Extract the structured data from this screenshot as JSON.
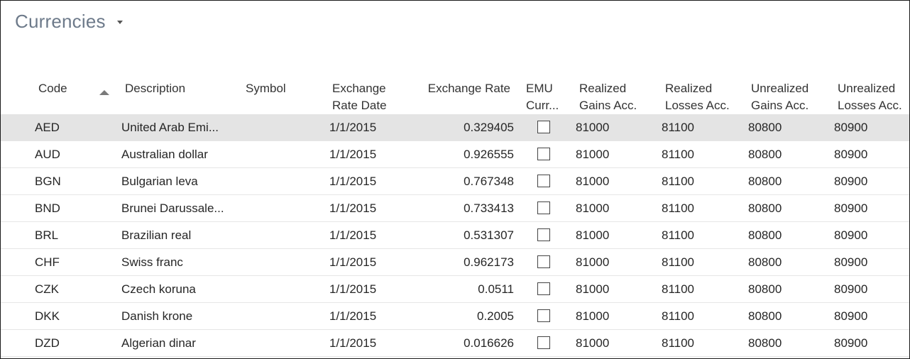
{
  "page": {
    "title": "Currencies"
  },
  "columns": {
    "code": "Code",
    "description": "Description",
    "symbol": "Symbol",
    "exchange_rate_date_1": "Exchange",
    "exchange_rate_date_2": "Rate Date",
    "exchange_rate": "Exchange Rate",
    "emu_1": "EMU",
    "emu_2": "Curr...",
    "realized_gains_1": "Realized",
    "realized_gains_2": "Gains Acc.",
    "realized_losses_1": "Realized",
    "realized_losses_2": "Losses Acc.",
    "unrealized_gains_1": "Unrealized",
    "unrealized_gains_2": "Gains Acc.",
    "unrealized_losses_1": "Unrealized",
    "unrealized_losses_2": "Losses Acc."
  },
  "rows": [
    {
      "code": "AED",
      "description": "United Arab Emi...",
      "symbol": "",
      "date": "1/1/2015",
      "rate": "0.329405",
      "emu": false,
      "rg": "81000",
      "rl": "81100",
      "ug": "80800",
      "ul": "80900"
    },
    {
      "code": "AUD",
      "description": "Australian dollar",
      "symbol": "",
      "date": "1/1/2015",
      "rate": "0.926555",
      "emu": false,
      "rg": "81000",
      "rl": "81100",
      "ug": "80800",
      "ul": "80900"
    },
    {
      "code": "BGN",
      "description": "Bulgarian leva",
      "symbol": "",
      "date": "1/1/2015",
      "rate": "0.767348",
      "emu": false,
      "rg": "81000",
      "rl": "81100",
      "ug": "80800",
      "ul": "80900"
    },
    {
      "code": "BND",
      "description": "Brunei Darussale...",
      "symbol": "",
      "date": "1/1/2015",
      "rate": "0.733413",
      "emu": false,
      "rg": "81000",
      "rl": "81100",
      "ug": "80800",
      "ul": "80900"
    },
    {
      "code": "BRL",
      "description": "Brazilian real",
      "symbol": "",
      "date": "1/1/2015",
      "rate": "0.531307",
      "emu": false,
      "rg": "81000",
      "rl": "81100",
      "ug": "80800",
      "ul": "80900"
    },
    {
      "code": "CHF",
      "description": "Swiss franc",
      "symbol": "",
      "date": "1/1/2015",
      "rate": "0.962173",
      "emu": false,
      "rg": "81000",
      "rl": "81100",
      "ug": "80800",
      "ul": "80900"
    },
    {
      "code": "CZK",
      "description": "Czech koruna",
      "symbol": "",
      "date": "1/1/2015",
      "rate": "0.0511",
      "emu": false,
      "rg": "81000",
      "rl": "81100",
      "ug": "80800",
      "ul": "80900"
    },
    {
      "code": "DKK",
      "description": "Danish krone",
      "symbol": "",
      "date": "1/1/2015",
      "rate": "0.2005",
      "emu": false,
      "rg": "81000",
      "rl": "81100",
      "ug": "80800",
      "ul": "80900"
    },
    {
      "code": "DZD",
      "description": "Algerian dinar",
      "symbol": "",
      "date": "1/1/2015",
      "rate": "0.016626",
      "emu": false,
      "rg": "81000",
      "rl": "81100",
      "ug": "80800",
      "ul": "80900"
    }
  ],
  "selected_row_index": 0,
  "colors": {
    "title": "#6d7a8a",
    "selected_row": "#e4e4e4",
    "row_divider": "#e6e6e6"
  }
}
